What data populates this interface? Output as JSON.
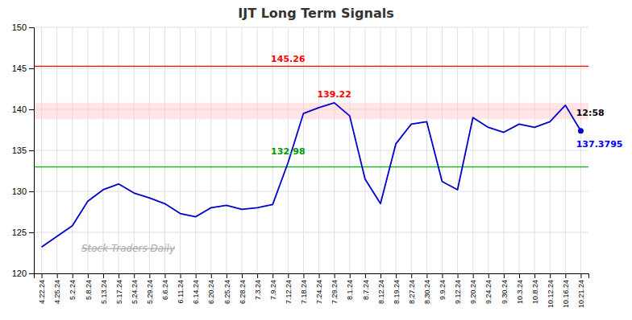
{
  "chart_data": {
    "type": "line",
    "title": "IJT Long Term Signals",
    "categories": [
      "4.22.24",
      "4.25.24",
      "5.2.24",
      "5.8.24",
      "5.13.24",
      "5.17.24",
      "5.24.24",
      "5.29.24",
      "6.6.24",
      "6.11.24",
      "6.14.24",
      "6.20.24",
      "6.25.24",
      "6.28.24",
      "7.3.24",
      "7.9.24",
      "7.12.24",
      "7.18.24",
      "7.24.24",
      "7.29.24",
      "8.1.24",
      "8.7.24",
      "8.12.24",
      "8.19.24",
      "8.27.24",
      "8.30.24",
      "9.9.24",
      "9.12.24",
      "9.20.24",
      "9.24.24",
      "9.30.24",
      "10.3.24",
      "10.8.24",
      "10.12.24",
      "10.16.24",
      "10.21.24"
    ],
    "values": [
      123.2,
      124.5,
      125.8,
      128.8,
      130.2,
      130.9,
      129.8,
      129.2,
      128.5,
      127.3,
      126.9,
      128.0,
      128.3,
      127.8,
      128.0,
      128.4,
      133.5,
      139.5,
      140.2,
      140.8,
      139.2,
      131.5,
      128.5,
      135.8,
      138.2,
      138.5,
      131.2,
      130.2,
      139.0,
      137.8,
      137.2,
      138.2,
      137.8,
      138.5,
      140.5,
      137.3795
    ],
    "color": "#0000cc",
    "ylim": [
      120,
      150
    ],
    "yticks": [
      120,
      125,
      130,
      135,
      140,
      145,
      150
    ],
    "grid": true,
    "hlines": [
      {
        "value": 145.26,
        "color": "#ff0000"
      },
      {
        "value": 132.98,
        "color": "#00bb00"
      }
    ],
    "bands": [
      {
        "from": 138.8,
        "to": 140.8,
        "color": "#ffcccc"
      }
    ],
    "annotations": [
      {
        "text": "145.26",
        "x": "7.12.24",
        "y": 145.8,
        "color": "#ff0000"
      },
      {
        "text": "139.22",
        "x": "7.29.24",
        "y": 141.5,
        "color": "#ff0000"
      },
      {
        "text": "132.98",
        "x": "7.12.24",
        "y": 134.5,
        "color": "#009900"
      },
      {
        "text": "12:58",
        "x": "10.21.24",
        "y": 139.1795,
        "color": "#000000"
      },
      {
        "text": "137.3795",
        "x": "10.21.24",
        "y": 136.1795,
        "color": "#0000ff"
      }
    ],
    "watermark": "Stock Traders Daily"
  }
}
